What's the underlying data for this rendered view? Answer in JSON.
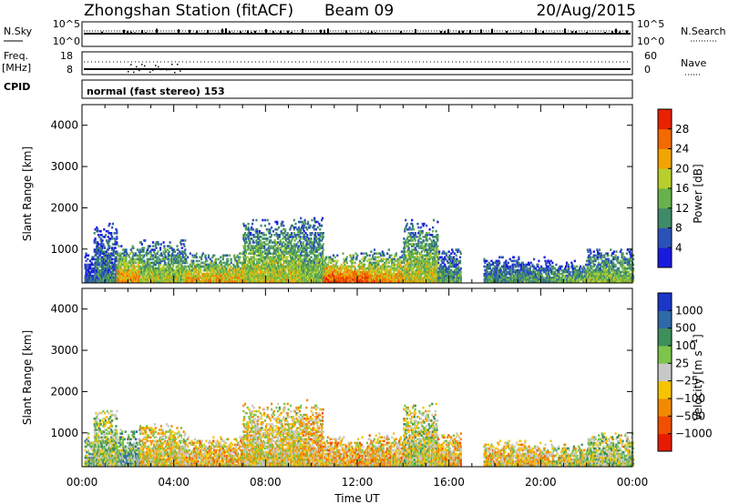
{
  "header": {
    "title": "Zhongshan Station (fitACF)",
    "beam": "Beam 09",
    "date": "20/Aug/2015"
  },
  "strips": {
    "nsky_label": "N.Sky",
    "nsearch_label": "N.Search",
    "nsky_ticks": [
      "10^5",
      "10^0"
    ],
    "freq_label_1": "Freq.",
    "freq_label_2": "[MHz]",
    "freq_ticks": [
      "18",
      "8"
    ],
    "nave_label": "Nave",
    "nave_ticks": [
      "60",
      "0"
    ],
    "cpid_label": "CPID",
    "cpid_text": "normal (fast stereo) 153"
  },
  "chart_data": [
    {
      "type": "heatmap",
      "name": "power",
      "xlabel": "",
      "ylabel": "Slant Range [km]",
      "xlim": [
        0,
        24
      ],
      "ylim": [
        180,
        4500
      ],
      "yticks": [
        1000,
        2000,
        3000,
        4000
      ],
      "colorbar": {
        "label": "Power [dB]",
        "range": [
          0,
          32
        ],
        "ticks": [
          "4",
          "8",
          "12",
          "16",
          "20",
          "24",
          "28"
        ],
        "colors": [
          "#1a1adf",
          "#2a52b8",
          "#3f8a68",
          "#67b24c",
          "#b7cf2c",
          "#f2a400",
          "#f26a00",
          "#e82200"
        ]
      },
      "activity": [
        {
          "t": [
            0.1,
            0.5
          ],
          "r": [
            200,
            1000
          ],
          "level": 0.2
        },
        {
          "t": [
            0.5,
            1.5
          ],
          "r": [
            200,
            1600
          ],
          "level": 0.3
        },
        {
          "t": [
            1.5,
            2.5
          ],
          "r": [
            200,
            1100
          ],
          "level": 0.75
        },
        {
          "t": [
            2.5,
            4.5
          ],
          "r": [
            200,
            1200
          ],
          "level": 0.55
        },
        {
          "t": [
            4.5,
            7.0
          ],
          "r": [
            200,
            900
          ],
          "level": 0.7
        },
        {
          "t": [
            7.0,
            9.5
          ],
          "r": [
            200,
            1700
          ],
          "level": 0.6
        },
        {
          "t": [
            9.5,
            10.5
          ],
          "r": [
            200,
            1800
          ],
          "level": 0.5
        },
        {
          "t": [
            10.5,
            12.5
          ],
          "r": [
            200,
            900
          ],
          "level": 0.9
        },
        {
          "t": [
            12.5,
            14.0
          ],
          "r": [
            200,
            1000
          ],
          "level": 0.75
        },
        {
          "t": [
            14.0,
            15.5
          ],
          "r": [
            200,
            1700
          ],
          "level": 0.6
        },
        {
          "t": [
            15.5,
            16.5
          ],
          "r": [
            200,
            1000
          ],
          "level": 0.4
        },
        {
          "t": [
            17.5,
            20.5
          ],
          "r": [
            200,
            800
          ],
          "level": 0.35
        },
        {
          "t": [
            20.5,
            22.0
          ],
          "r": [
            200,
            700
          ],
          "level": 0.45
        },
        {
          "t": [
            22.0,
            24.0
          ],
          "r": [
            200,
            1000
          ],
          "level": 0.5
        }
      ]
    },
    {
      "type": "heatmap",
      "name": "velocity",
      "xlabel": "Time UT",
      "ylabel": "Slant Range [km]",
      "xlim": [
        0,
        24
      ],
      "ylim": [
        180,
        4500
      ],
      "xticks": [
        "00:00",
        "04:00",
        "08:00",
        "12:00",
        "16:00",
        "20:00",
        "00:00"
      ],
      "yticks": [
        1000,
        2000,
        3000,
        4000
      ],
      "colorbar": {
        "label": "Velocity [m s^-1]",
        "ticks": [
          "1000",
          "500",
          "100",
          "25",
          "−25",
          "−100",
          "−500",
          "−1000"
        ],
        "colors": [
          "#1a37c8",
          "#2f6aa8",
          "#3e8f5c",
          "#7cc44a",
          "#c8c8c8",
          "#f6c400",
          "#f28a00",
          "#f05000",
          "#e81a00"
        ]
      },
      "activity": [
        {
          "t": [
            0.1,
            0.5
          ],
          "r": [
            200,
            1000
          ],
          "level": 0.4
        },
        {
          "t": [
            0.5,
            1.5
          ],
          "r": [
            200,
            1600
          ],
          "level": 0.45
        },
        {
          "t": [
            1.5,
            2.5
          ],
          "r": [
            200,
            1100
          ],
          "level": 0.35
        },
        {
          "t": [
            2.5,
            4.5
          ],
          "r": [
            200,
            1200
          ],
          "level": 0.55
        },
        {
          "t": [
            4.5,
            7.0
          ],
          "r": [
            200,
            900
          ],
          "level": 0.6
        },
        {
          "t": [
            7.0,
            9.5
          ],
          "r": [
            200,
            1700
          ],
          "level": 0.55
        },
        {
          "t": [
            9.5,
            10.5
          ],
          "r": [
            200,
            1800
          ],
          "level": 0.6
        },
        {
          "t": [
            10.5,
            12.5
          ],
          "r": [
            200,
            900
          ],
          "level": 0.62
        },
        {
          "t": [
            12.5,
            14.0
          ],
          "r": [
            200,
            1000
          ],
          "level": 0.6
        },
        {
          "t": [
            14.0,
            15.5
          ],
          "r": [
            200,
            1700
          ],
          "level": 0.5
        },
        {
          "t": [
            15.5,
            16.5
          ],
          "r": [
            200,
            1000
          ],
          "level": 0.6
        },
        {
          "t": [
            17.5,
            20.5
          ],
          "r": [
            200,
            800
          ],
          "level": 0.58
        },
        {
          "t": [
            20.5,
            22.0
          ],
          "r": [
            200,
            700
          ],
          "level": 0.5
        },
        {
          "t": [
            22.0,
            24.0
          ],
          "r": [
            200,
            1000
          ],
          "level": 0.45
        }
      ]
    }
  ]
}
